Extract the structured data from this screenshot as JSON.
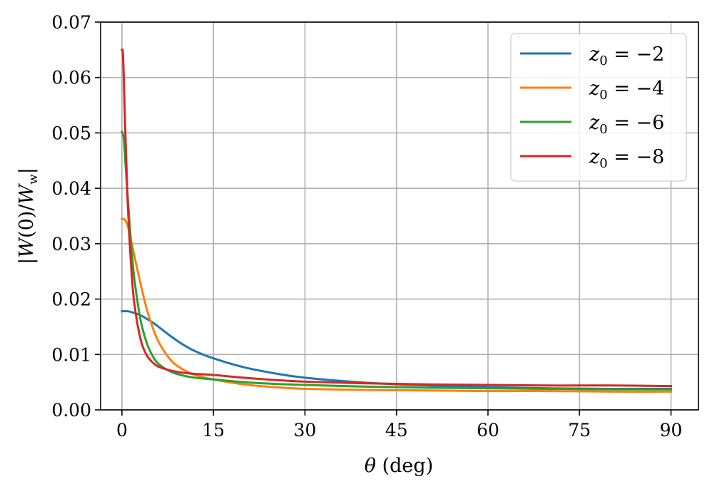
{
  "chart_data": {
    "type": "line",
    "xlabel": "θ (deg)",
    "ylabel": "|W(0)/Ww|",
    "xlim": [
      -3.5,
      94.5
    ],
    "ylim": [
      0,
      0.07
    ],
    "x_ticks": [
      0,
      15,
      30,
      45,
      60,
      75,
      90
    ],
    "x_tick_labels": [
      "0",
      "15",
      "30",
      "45",
      "60",
      "75",
      "90"
    ],
    "y_ticks": [
      0,
      0.01,
      0.02,
      0.03,
      0.04,
      0.05,
      0.06,
      0.07
    ],
    "y_tick_labels": [
      "0.00",
      "0.01",
      "0.02",
      "0.03",
      "0.04",
      "0.05",
      "0.06",
      "0.07"
    ],
    "grid": true,
    "legend_position": "top-right",
    "series": [
      {
        "name": "z0 = −2",
        "color": "#1f77b4",
        "x": [
          0,
          1,
          2,
          3,
          4,
          5,
          6,
          8,
          10,
          12,
          15,
          20,
          25,
          30,
          40,
          50,
          60,
          70,
          80,
          90
        ],
        "y": [
          0.0178,
          0.0178,
          0.0175,
          0.0171,
          0.0165,
          0.0158,
          0.015,
          0.0133,
          0.0118,
          0.0106,
          0.0093,
          0.0077,
          0.0066,
          0.0058,
          0.0049,
          0.0044,
          0.0041,
          0.0039,
          0.0038,
          0.0038
        ]
      },
      {
        "name": "z0 = −4",
        "color": "#ff7f0e",
        "x": [
          0,
          0.5,
          1,
          1.5,
          2,
          3,
          4,
          5,
          6,
          8,
          10,
          12,
          15,
          20,
          25,
          30,
          40,
          50,
          60,
          70,
          80,
          90
        ],
        "y": [
          0.0345,
          0.0343,
          0.033,
          0.0305,
          0.028,
          0.023,
          0.0185,
          0.015,
          0.0123,
          0.009,
          0.0073,
          0.0063,
          0.0055,
          0.0046,
          0.0041,
          0.0038,
          0.0036,
          0.0035,
          0.0034,
          0.0034,
          0.0033,
          0.0033
        ]
      },
      {
        "name": "z0 = −6",
        "color": "#2ca02c",
        "x": [
          0,
          0.3,
          0.6,
          1,
          1.5,
          2,
          3,
          4,
          5,
          6,
          8,
          10,
          12,
          15,
          20,
          25,
          30,
          40,
          50,
          60,
          70,
          80,
          90
        ],
        "y": [
          0.0502,
          0.049,
          0.044,
          0.0375,
          0.03,
          0.024,
          0.0165,
          0.0123,
          0.0098,
          0.0083,
          0.0069,
          0.0062,
          0.0058,
          0.0055,
          0.005,
          0.0047,
          0.0045,
          0.0042,
          0.004,
          0.0039,
          0.0038,
          0.0037,
          0.0037
        ]
      },
      {
        "name": "z0 = −8",
        "color": "#d62728",
        "x": [
          0,
          0.15,
          0.3,
          0.5,
          0.8,
          1,
          1.5,
          2,
          3,
          4,
          5,
          6,
          8,
          10,
          12,
          15,
          20,
          25,
          30,
          40,
          50,
          60,
          70,
          80,
          90
        ],
        "y": [
          0.065,
          0.0645,
          0.06,
          0.052,
          0.042,
          0.036,
          0.026,
          0.0195,
          0.013,
          0.01,
          0.0086,
          0.0078,
          0.0071,
          0.0067,
          0.0065,
          0.0063,
          0.0058,
          0.0054,
          0.0051,
          0.0048,
          0.0046,
          0.0045,
          0.0044,
          0.0044,
          0.0043
        ]
      }
    ]
  }
}
